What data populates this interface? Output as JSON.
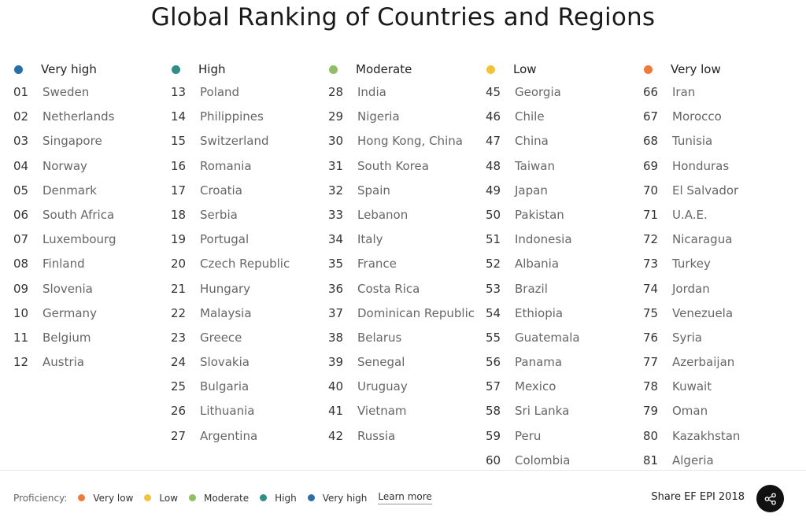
{
  "title": "Global Ranking of Countries and Regions",
  "columns": [
    {
      "label": "Very high",
      "color": "#2a6fa8",
      "items": [
        {
          "rank": "01",
          "name": "Sweden"
        },
        {
          "rank": "02",
          "name": "Netherlands"
        },
        {
          "rank": "03",
          "name": "Singapore"
        },
        {
          "rank": "04",
          "name": "Norway"
        },
        {
          "rank": "05",
          "name": "Denmark"
        },
        {
          "rank": "06",
          "name": "South Africa"
        },
        {
          "rank": "07",
          "name": "Luxembourg"
        },
        {
          "rank": "08",
          "name": "Finland"
        },
        {
          "rank": "09",
          "name": "Slovenia"
        },
        {
          "rank": "10",
          "name": "Germany"
        },
        {
          "rank": "11",
          "name": "Belgium"
        },
        {
          "rank": "12",
          "name": "Austria"
        }
      ]
    },
    {
      "label": "High",
      "color": "#2f8f86",
      "items": [
        {
          "rank": "13",
          "name": "Poland"
        },
        {
          "rank": "14",
          "name": "Philippines"
        },
        {
          "rank": "15",
          "name": "Switzerland"
        },
        {
          "rank": "16",
          "name": "Romania"
        },
        {
          "rank": "17",
          "name": "Croatia"
        },
        {
          "rank": "18",
          "name": "Serbia"
        },
        {
          "rank": "19",
          "name": "Portugal"
        },
        {
          "rank": "20",
          "name": "Czech Republic"
        },
        {
          "rank": "21",
          "name": "Hungary"
        },
        {
          "rank": "22",
          "name": "Malaysia"
        },
        {
          "rank": "23",
          "name": "Greece"
        },
        {
          "rank": "24",
          "name": "Slovakia"
        },
        {
          "rank": "25",
          "name": "Bulgaria"
        },
        {
          "rank": "26",
          "name": "Lithuania"
        },
        {
          "rank": "27",
          "name": "Argentina"
        }
      ]
    },
    {
      "label": "Moderate",
      "color": "#8fbe67",
      "items": [
        {
          "rank": "28",
          "name": "India"
        },
        {
          "rank": "29",
          "name": "Nigeria"
        },
        {
          "rank": "30",
          "name": "Hong Kong, China"
        },
        {
          "rank": "31",
          "name": "South Korea"
        },
        {
          "rank": "32",
          "name": "Spain"
        },
        {
          "rank": "33",
          "name": "Lebanon"
        },
        {
          "rank": "34",
          "name": "Italy"
        },
        {
          "rank": "35",
          "name": "France"
        },
        {
          "rank": "36",
          "name": "Costa Rica"
        },
        {
          "rank": "37",
          "name": "Dominican Republic"
        },
        {
          "rank": "38",
          "name": "Belarus"
        },
        {
          "rank": "39",
          "name": "Senegal"
        },
        {
          "rank": "40",
          "name": "Uruguay"
        },
        {
          "rank": "41",
          "name": "Vietnam"
        },
        {
          "rank": "42",
          "name": "Russia"
        }
      ]
    },
    {
      "label": "Low",
      "color": "#f2c33a",
      "items": [
        {
          "rank": "45",
          "name": "Georgia"
        },
        {
          "rank": "46",
          "name": "Chile"
        },
        {
          "rank": "47",
          "name": "China"
        },
        {
          "rank": "48",
          "name": "Taiwan"
        },
        {
          "rank": "49",
          "name": "Japan"
        },
        {
          "rank": "50",
          "name": "Pakistan"
        },
        {
          "rank": "51",
          "name": "Indonesia"
        },
        {
          "rank": "52",
          "name": "Albania"
        },
        {
          "rank": "53",
          "name": "Brazil"
        },
        {
          "rank": "54",
          "name": "Ethiopia"
        },
        {
          "rank": "55",
          "name": "Guatemala"
        },
        {
          "rank": "56",
          "name": "Panama"
        },
        {
          "rank": "57",
          "name": "Mexico"
        },
        {
          "rank": "58",
          "name": "Sri Lanka"
        },
        {
          "rank": "59",
          "name": "Peru"
        },
        {
          "rank": "60",
          "name": "Colombia"
        }
      ]
    },
    {
      "label": "Very low",
      "color": "#f07a3a",
      "items": [
        {
          "rank": "66",
          "name": "Iran"
        },
        {
          "rank": "67",
          "name": "Morocco"
        },
        {
          "rank": "68",
          "name": "Tunisia"
        },
        {
          "rank": "69",
          "name": "Honduras"
        },
        {
          "rank": "70",
          "name": "El Salvador"
        },
        {
          "rank": "71",
          "name": "U.A.E."
        },
        {
          "rank": "72",
          "name": "Nicaragua"
        },
        {
          "rank": "73",
          "name": "Turkey"
        },
        {
          "rank": "74",
          "name": "Jordan"
        },
        {
          "rank": "75",
          "name": "Venezuela"
        },
        {
          "rank": "76",
          "name": "Syria"
        },
        {
          "rank": "77",
          "name": "Azerbaijan"
        },
        {
          "rank": "78",
          "name": "Kuwait"
        },
        {
          "rank": "79",
          "name": "Oman"
        },
        {
          "rank": "80",
          "name": "Kazakhstan"
        },
        {
          "rank": "81",
          "name": "Algeria"
        }
      ]
    }
  ],
  "footer": {
    "proficiency_label": "Proficiency:",
    "legend": [
      {
        "label": "Very low",
        "color": "#f07a3a"
      },
      {
        "label": "Low",
        "color": "#f2c33a"
      },
      {
        "label": "Moderate",
        "color": "#8fbe67"
      },
      {
        "label": "High",
        "color": "#2f8f86"
      },
      {
        "label": "Very high",
        "color": "#2a6fa8"
      }
    ],
    "learn_more": "Learn more",
    "share_label": "Share EF EPI 2018",
    "share_icon": "share-icon"
  }
}
